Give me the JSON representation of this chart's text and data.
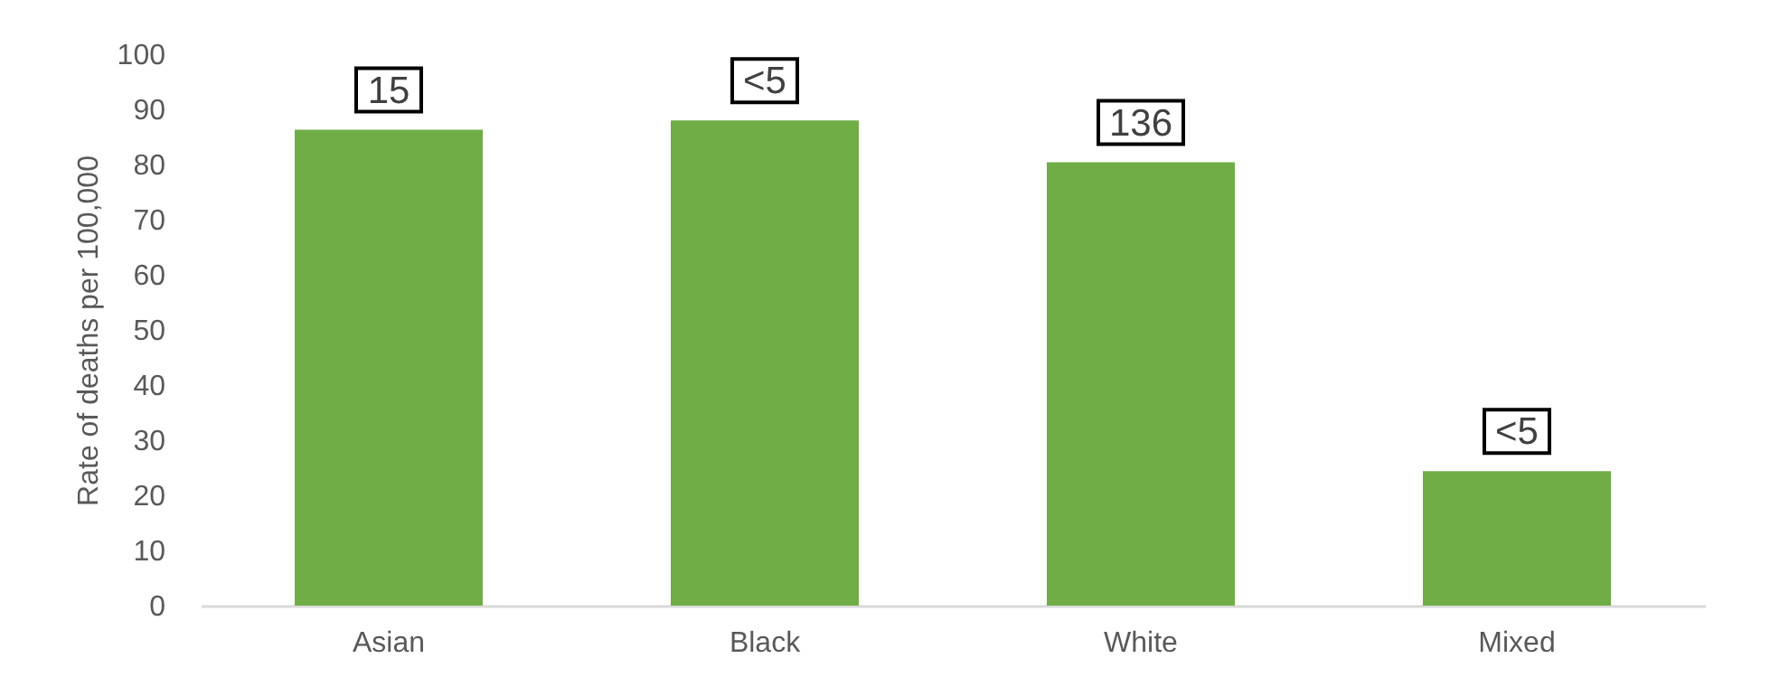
{
  "chart_data": {
    "type": "bar",
    "ylabel": "Rate of deaths per 100,000",
    "categories": [
      "Asian",
      "Black",
      "White",
      "Mixed"
    ],
    "values": [
      86.3,
      88.0,
      80.4,
      24.4
    ],
    "annotations": [
      {
        "text": "15",
        "x": "Asian",
        "y": 86.3
      },
      {
        "text": "<5",
        "x": "Black",
        "y": 88.0
      },
      {
        "text": "136",
        "x": "White",
        "y": 80.4
      },
      {
        "text": "<5",
        "x": "Mixed",
        "y": 24.4
      }
    ],
    "color": "#70ad47",
    "ylim": [
      0,
      100
    ],
    "yticks": [
      0,
      10,
      20,
      30,
      40,
      50,
      60,
      70,
      80,
      90,
      100
    ],
    "grid": false
  }
}
